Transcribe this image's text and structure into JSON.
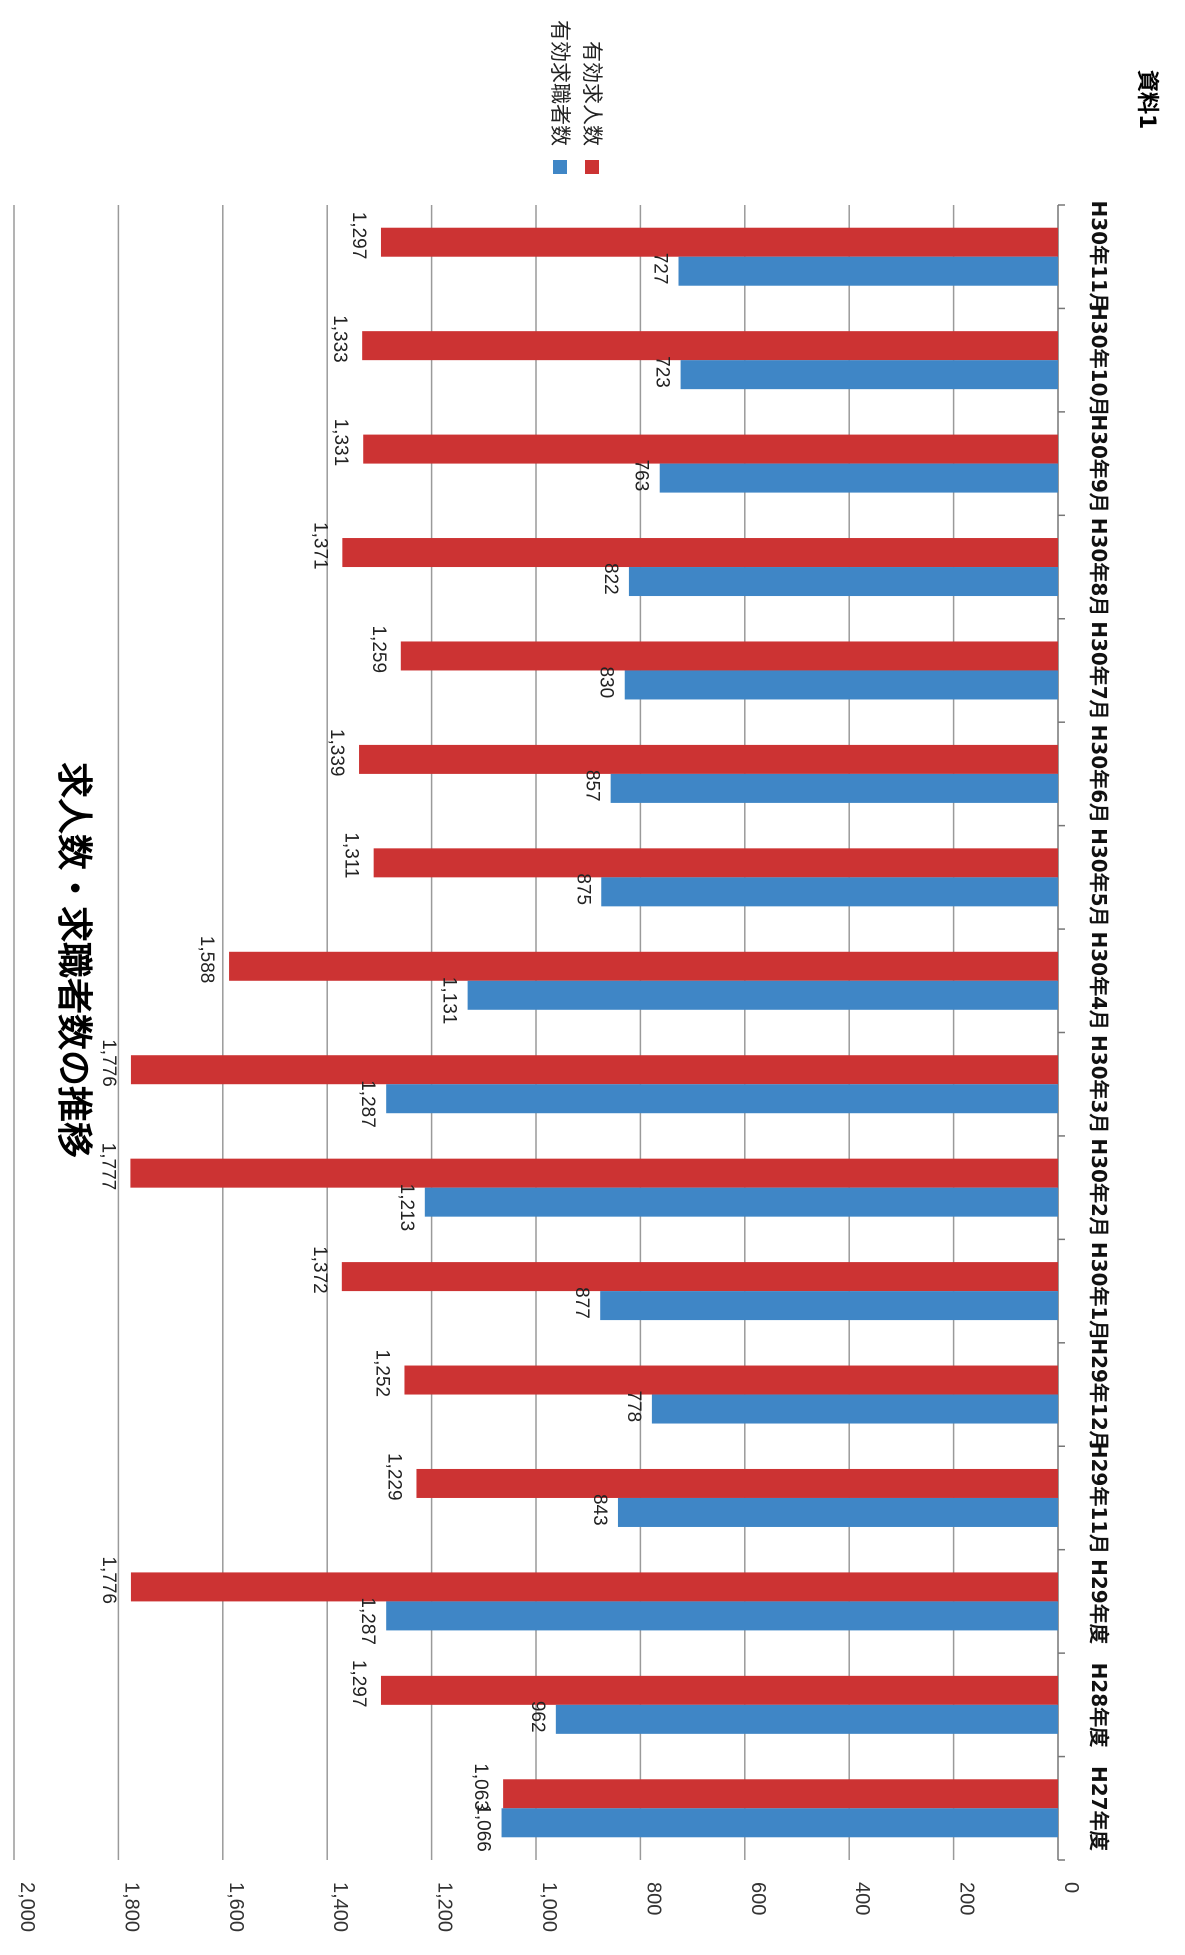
{
  "document_label": "資料1",
  "chart_data": {
    "type": "bar",
    "title": "求人数・求職者数の推移",
    "orientation": "rotated-90-clockwise",
    "categories": [
      "H27年度",
      "H28年度",
      "H29年度",
      "H29年11月",
      "H29年12月",
      "H30年1月",
      "H30年2月",
      "H30年3月",
      "H30年4月",
      "H30年5月",
      "H30年6月",
      "H30年7月",
      "H30年8月",
      "H30年9月",
      "H30年10月",
      "H30年11月"
    ],
    "series": [
      {
        "name": "有効求職者数",
        "color": "#3f86c6",
        "values": [
          1066,
          962,
          1287,
          843,
          778,
          877,
          1213,
          1287,
          1131,
          875,
          857,
          830,
          822,
          763,
          723,
          727
        ],
        "labels": [
          "1,066",
          "962",
          "1,287",
          "843",
          "778",
          "877",
          "1,213",
          "1,287",
          "1,131",
          "875",
          "857",
          "830",
          "822",
          "763",
          "723",
          "727"
        ]
      },
      {
        "name": "有効求人数",
        "color": "#cc3333",
        "values": [
          1063,
          1297,
          1776,
          1229,
          1252,
          1372,
          1777,
          1776,
          1588,
          1311,
          1339,
          1259,
          1371,
          1331,
          1333,
          1297
        ],
        "labels": [
          "1,063",
          "1,297",
          "1,776",
          "1,229",
          "1,252",
          "1,372",
          "1,777",
          "1,776",
          "1,588",
          "1,311",
          "1,339",
          "1,259",
          "1,371",
          "1,331",
          "1,333",
          "1,297"
        ]
      }
    ],
    "ylim": [
      0,
      2000
    ],
    "ticks": [
      0,
      200,
      400,
      600,
      800,
      1000,
      1200,
      1400,
      1600,
      1800,
      2000
    ],
    "tick_labels": [
      "0",
      "200",
      "400",
      "600",
      "800",
      "1,000",
      "1,200",
      "1,400",
      "1,600",
      "1,800",
      "2,000"
    ],
    "grid": true,
    "legend_position": "top-right"
  }
}
